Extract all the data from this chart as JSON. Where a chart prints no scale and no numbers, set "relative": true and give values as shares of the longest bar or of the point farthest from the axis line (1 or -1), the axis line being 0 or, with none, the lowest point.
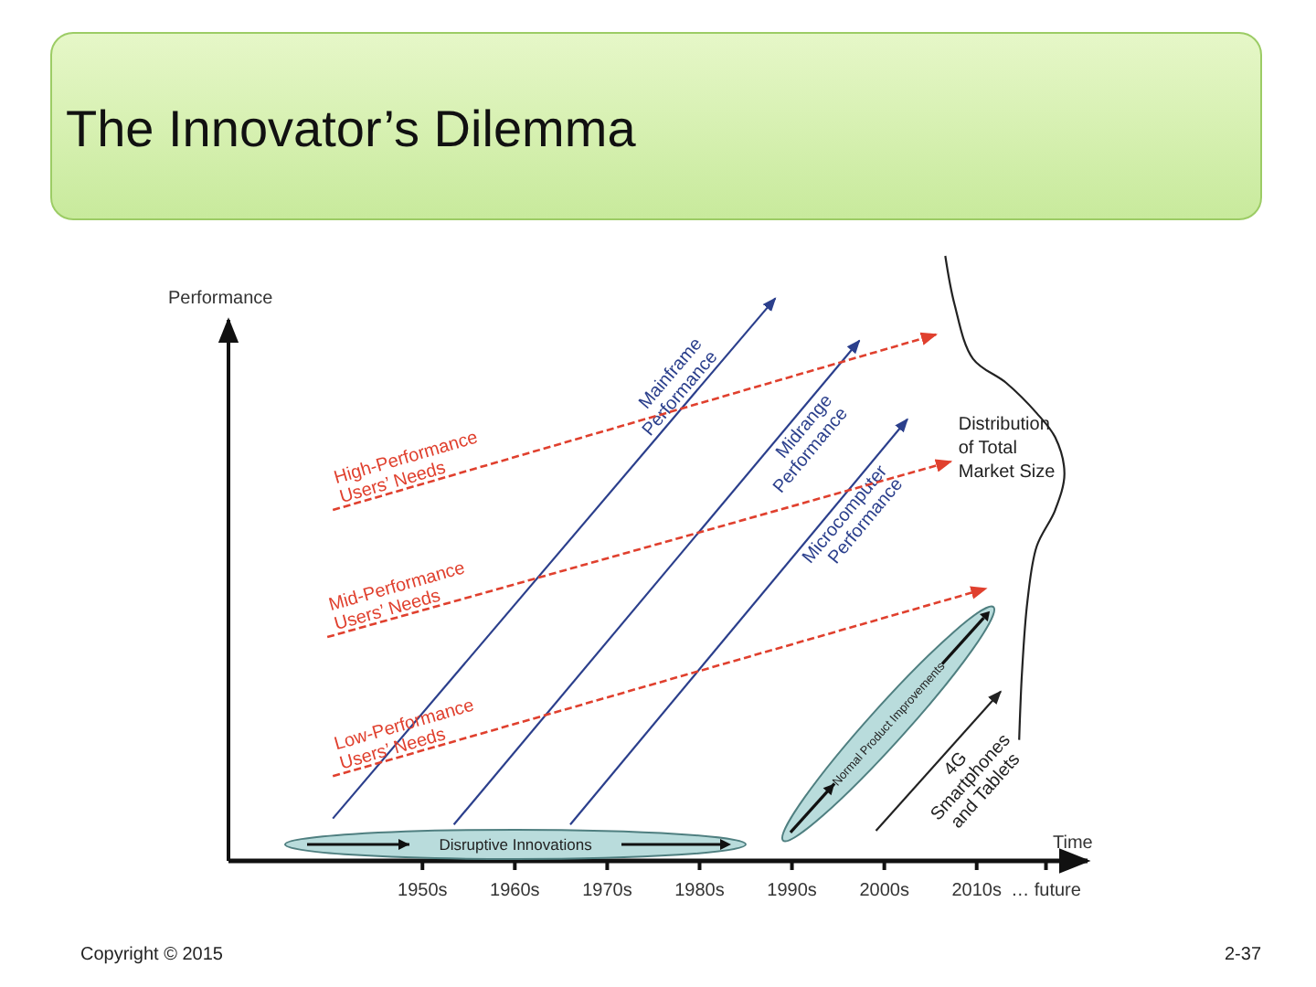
{
  "chart_data": {
    "type": "line",
    "title": "The Innovator’s Dilemma",
    "xlabel": "Time",
    "ylabel": "Performance",
    "relative": true,
    "xlim": [
      1929,
      2022
    ],
    "xticks": [
      {
        "value": 1950,
        "label": "1950s"
      },
      {
        "value": 1960,
        "label": "1960s"
      },
      {
        "value": 1970,
        "label": "1970s"
      },
      {
        "value": 1980,
        "label": "1980s"
      },
      {
        "value": 1990,
        "label": "1990s"
      },
      {
        "value": 2000,
        "label": "2000s"
      },
      {
        "value": 2010,
        "label": "2010s"
      },
      {
        "value": 2017.5,
        "label": "… future"
      }
    ],
    "grid": false,
    "legend": false,
    "marker": "none",
    "series": [
      {
        "name": "Mainframe Performance",
        "color": "#2b3f8c",
        "line_style": "solid",
        "x": [
          1940.3,
          1988.2
        ],
        "values": [
          0.07,
          0.93
        ]
      },
      {
        "name": "Midrange Performance",
        "color": "#2b3f8c",
        "line_style": "solid",
        "x": [
          1953.4,
          1997.3
        ],
        "values": [
          0.06,
          0.86
        ]
      },
      {
        "name": "Microcomputer Performance",
        "color": "#2b3f8c",
        "line_style": "solid",
        "x": [
          1966,
          2002.5
        ],
        "values": [
          0.06,
          0.73
        ]
      },
      {
        "name": "High-Performance Users’ Needs",
        "color": "#e0402e",
        "line_style": "dashed",
        "x": [
          1940.3,
          2005.6
        ],
        "values": [
          0.58,
          0.87
        ]
      },
      {
        "name": "Mid-Performance Users’ Needs",
        "color": "#e0402e",
        "line_style": "dashed",
        "x": [
          1939.7,
          2007.2
        ],
        "values": [
          0.37,
          0.66
        ]
      },
      {
        "name": "Low-Performance Users’ Needs",
        "color": "#e0402e",
        "line_style": "dashed",
        "x": [
          1940.3,
          2011
        ],
        "values": [
          0.14,
          0.45
        ]
      },
      {
        "name": "4G Smartphones and Tablets",
        "color": "#222222",
        "line_style": "solid",
        "x": [
          1999.1,
          2012.6
        ],
        "values": [
          0.05,
          0.28
        ]
      },
      {
        "name": "Distribution of Total Market Size",
        "color": "#222222",
        "line_style": "solid",
        "x": [
          2006.6,
          2007.6,
          2009.6,
          2013.2,
          2016.5,
          2018.5,
          2019.5,
          2018.5,
          2016.5,
          2015.5,
          2014.9,
          2014.6
        ],
        "values": [
          1.0,
          0.92,
          0.83,
          0.79,
          0.74,
          0.7,
          0.64,
          0.58,
          0.52,
          0.43,
          0.31,
          0.2
        ]
      }
    ],
    "annotations": [
      "Disruptive Innovations",
      "Normal Product Improvements",
      "Copyright © 2015",
      "2-37"
    ]
  }
}
